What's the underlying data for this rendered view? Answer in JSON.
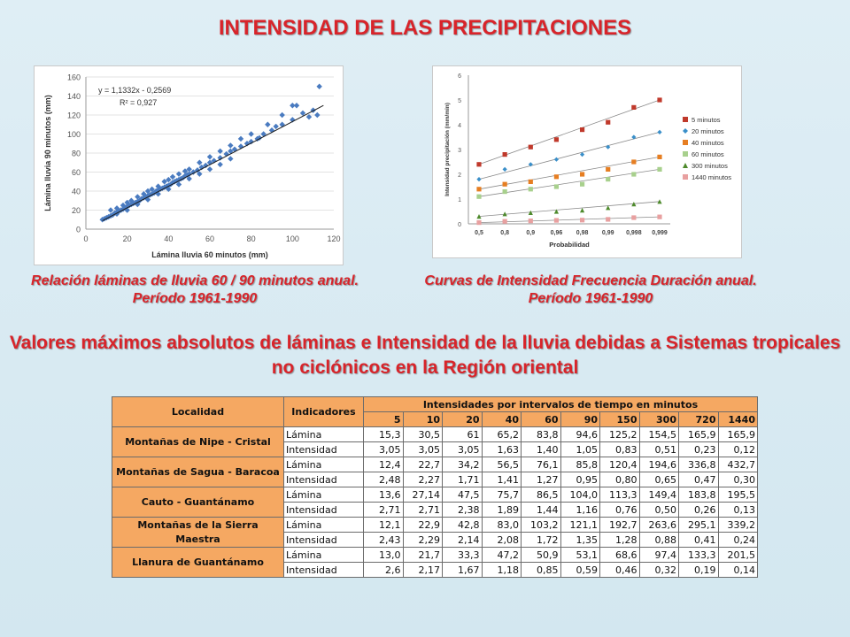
{
  "title": "INTENSIDAD DE LAS PRECIPITACIONES",
  "subtitle": "Valores máximos absolutos de láminas e Intensidad de la lluvia debidas a Sistemas tropicales no ciclónicos en la Región oriental",
  "captions": {
    "left": "Relación láminas de lluvia 60 / 90 minutos anual. Período 1961-1990",
    "right": "Curvas de Intensidad Frecuencia Duración anual. Período 1961-1990"
  },
  "colors": {
    "title": "#d8242a",
    "header": "#f5a862",
    "scatter": "#4a7bc0"
  },
  "chart_data": [
    {
      "type": "scatter",
      "xlabel": "Lámina lluvia 60 minutos (mm)",
      "ylabel": "Lámina lluvia 90 minutos (mm)",
      "xlim": [
        0,
        120
      ],
      "ylim": [
        0,
        160
      ],
      "x_ticks": [
        "0",
        "20",
        "40",
        "60",
        "80",
        "100",
        "120"
      ],
      "y_ticks": [
        "0",
        "20",
        "40",
        "60",
        "80",
        "100",
        "120",
        "140",
        "160"
      ],
      "annotation": [
        "y = 1,1332x - 0,2569",
        "R² = 0,927"
      ],
      "trendline": {
        "slope": 1.1332,
        "intercept": -0.2569,
        "x_range": [
          8,
          115
        ]
      },
      "points": [
        [
          8,
          10
        ],
        [
          9,
          11
        ],
        [
          10,
          12
        ],
        [
          11,
          13
        ],
        [
          12,
          14
        ],
        [
          13,
          15
        ],
        [
          14,
          17
        ],
        [
          15,
          18
        ],
        [
          16,
          19
        ],
        [
          17,
          20
        ],
        [
          18,
          21
        ],
        [
          19,
          22
        ],
        [
          20,
          24
        ],
        [
          21,
          25
        ],
        [
          22,
          26
        ],
        [
          23,
          27
        ],
        [
          24,
          28
        ],
        [
          25,
          29
        ],
        [
          26,
          30
        ],
        [
          27,
          32
        ],
        [
          28,
          33
        ],
        [
          29,
          34
        ],
        [
          30,
          35
        ],
        [
          31,
          36
        ],
        [
          32,
          37
        ],
        [
          33,
          38
        ],
        [
          34,
          40
        ],
        [
          35,
          41
        ],
        [
          36,
          42
        ],
        [
          37,
          43
        ],
        [
          38,
          44
        ],
        [
          39,
          45
        ],
        [
          40,
          46
        ],
        [
          41,
          47
        ],
        [
          42,
          49
        ],
        [
          43,
          50
        ],
        [
          44,
          51
        ],
        [
          45,
          52
        ],
        [
          46,
          53
        ],
        [
          47,
          54
        ],
        [
          48,
          56
        ],
        [
          49,
          57
        ],
        [
          50,
          58
        ],
        [
          52,
          60
        ],
        [
          54,
          62
        ],
        [
          56,
          65
        ],
        [
          58,
          67
        ],
        [
          60,
          70
        ],
        [
          62,
          72
        ],
        [
          65,
          75
        ],
        [
          68,
          79
        ],
        [
          70,
          82
        ],
        [
          72,
          84
        ],
        [
          75,
          87
        ],
        [
          78,
          90
        ],
        [
          80,
          92
        ],
        [
          84,
          96
        ],
        [
          86,
          100
        ],
        [
          90,
          104
        ],
        [
          95,
          110
        ],
        [
          100,
          115
        ],
        [
          105,
          122
        ],
        [
          110,
          125
        ],
        [
          112,
          120
        ],
        [
          113,
          150
        ],
        [
          12,
          20
        ],
        [
          15,
          22
        ],
        [
          18,
          25
        ],
        [
          20,
          28
        ],
        [
          22,
          30
        ],
        [
          25,
          34
        ],
        [
          28,
          37
        ],
        [
          30,
          40
        ],
        [
          32,
          42
        ],
        [
          35,
          45
        ],
        [
          38,
          50
        ],
        [
          40,
          52
        ],
        [
          42,
          55
        ],
        [
          45,
          58
        ],
        [
          48,
          61
        ],
        [
          50,
          63
        ],
        [
          55,
          70
        ],
        [
          60,
          76
        ],
        [
          65,
          82
        ],
        [
          70,
          88
        ],
        [
          75,
          95
        ],
        [
          80,
          100
        ],
        [
          88,
          110
        ],
        [
          95,
          120
        ],
        [
          102,
          130
        ],
        [
          108,
          118
        ],
        [
          15,
          16
        ],
        [
          20,
          20
        ],
        [
          25,
          26
        ],
        [
          30,
          31
        ],
        [
          35,
          37
        ],
        [
          40,
          42
        ],
        [
          45,
          47
        ],
        [
          50,
          53
        ],
        [
          55,
          58
        ],
        [
          60,
          63
        ],
        [
          65,
          68
        ],
        [
          70,
          74
        ],
        [
          100,
          130
        ],
        [
          92,
          108
        ],
        [
          83,
          95
        ]
      ]
    },
    {
      "type": "line",
      "xlabel": "Probabilidad",
      "ylabel": "Intensidad precipitación (mm/min)",
      "categories": [
        "0,5",
        "0,8",
        "0,9",
        "0,96",
        "0,98",
        "0,99",
        "0,998",
        "0,999"
      ],
      "y_ticks": [
        "0",
        "1",
        "2",
        "3",
        "4",
        "5",
        "6"
      ],
      "ylim": [
        0,
        6
      ],
      "series": [
        {
          "name": "5 minutos",
          "color": "#c0392b",
          "marker": "square",
          "values": [
            2.4,
            2.8,
            3.1,
            3.4,
            3.8,
            4.1,
            4.7,
            5.0
          ]
        },
        {
          "name": "20 minutos",
          "color": "#3a8fc9",
          "marker": "diamond",
          "values": [
            1.8,
            2.2,
            2.4,
            2.6,
            2.8,
            3.1,
            3.5,
            3.7
          ]
        },
        {
          "name": "40 minutos",
          "color": "#e67e22",
          "marker": "square",
          "values": [
            1.4,
            1.6,
            1.7,
            1.9,
            2.0,
            2.2,
            2.5,
            2.7
          ]
        },
        {
          "name": "60 minutos",
          "color": "#a8d08d",
          "marker": "square",
          "values": [
            1.1,
            1.3,
            1.4,
            1.5,
            1.6,
            1.8,
            2.0,
            2.2
          ]
        },
        {
          "name": "300 minutos",
          "color": "#4e8a2c",
          "marker": "triangle",
          "values": [
            0.3,
            0.4,
            0.45,
            0.5,
            0.55,
            0.65,
            0.8,
            0.9
          ]
        },
        {
          "name": "1440 minutos",
          "color": "#e8a0a0",
          "marker": "square",
          "values": [
            0.05,
            0.1,
            0.12,
            0.14,
            0.15,
            0.18,
            0.25,
            0.28
          ]
        }
      ]
    }
  ],
  "table": {
    "col_localidad": "Localidad",
    "col_indicadores": "Indicadores",
    "col_group": "Intensidades por intervalos de tiempo en minutos",
    "intervals": [
      "5",
      "10",
      "20",
      "40",
      "60",
      "90",
      "150",
      "300",
      "720",
      "1440"
    ],
    "rows": [
      {
        "localidad": "Montañas de Nipe - Cristal",
        "lamina_label": "Lámina",
        "lamina": [
          "15,3",
          "30,5",
          "61",
          "65,2",
          "83,8",
          "94,6",
          "125,2",
          "154,5",
          "165,9",
          "165,9"
        ],
        "intensidad_label": "Intensidad",
        "intensidad": [
          "3,05",
          "3,05",
          "3,05",
          "1,63",
          "1,40",
          "1,05",
          "0,83",
          "0,51",
          "0,23",
          "0,12"
        ]
      },
      {
        "localidad": "Montañas de Sagua - Baracoa",
        "lamina_label": "Lámina",
        "lamina": [
          "12,4",
          "22,7",
          "34,2",
          "56,5",
          "76,1",
          "85,8",
          "120,4",
          "194,6",
          "336,8",
          "432,7"
        ],
        "intensidad_label": "Intensidad",
        "intensidad": [
          "2,48",
          "2,27",
          "1,71",
          "1,41",
          "1,27",
          "0,95",
          "0,80",
          "0,65",
          "0,47",
          "0,30"
        ]
      },
      {
        "localidad": "Cauto - Guantánamo",
        "lamina_label": "Lámina",
        "lamina": [
          "13,6",
          "27,14",
          "47,5",
          "75,7",
          "86,5",
          "104,0",
          "113,3",
          "149,4",
          "183,8",
          "195,5"
        ],
        "intensidad_label": "Intensidad",
        "intensidad": [
          "2,71",
          "2,71",
          "2,38",
          "1,89",
          "1,44",
          "1,16",
          "0,76",
          "0,50",
          "0,26",
          "0,13"
        ]
      },
      {
        "localidad": "Montañas de la Sierra Maestra",
        "lamina_label": "Lámina",
        "lamina": [
          "12,1",
          "22,9",
          "42,8",
          "83,0",
          "103,2",
          "121,1",
          "192,7",
          "263,6",
          "295,1",
          "339,2"
        ],
        "intensidad_label": "Intensidad",
        "intensidad": [
          "2,43",
          "2,29",
          "2,14",
          "2,08",
          "1,72",
          "1,35",
          "1,28",
          "0,88",
          "0,41",
          "0,24"
        ]
      },
      {
        "localidad": "Llanura de Guantánamo",
        "lamina_label": "Lámina",
        "lamina": [
          "13,0",
          "21,7",
          "33,3",
          "47,2",
          "50,9",
          "53,1",
          "68,6",
          "97,4",
          "133,3",
          "201,5"
        ],
        "intensidad_label": "Intensidad",
        "intensidad": [
          "2,6",
          "2,17",
          "1,67",
          "1,18",
          "0,85",
          "0,59",
          "0,46",
          "0,32",
          "0,19",
          "0,14"
        ]
      }
    ]
  }
}
